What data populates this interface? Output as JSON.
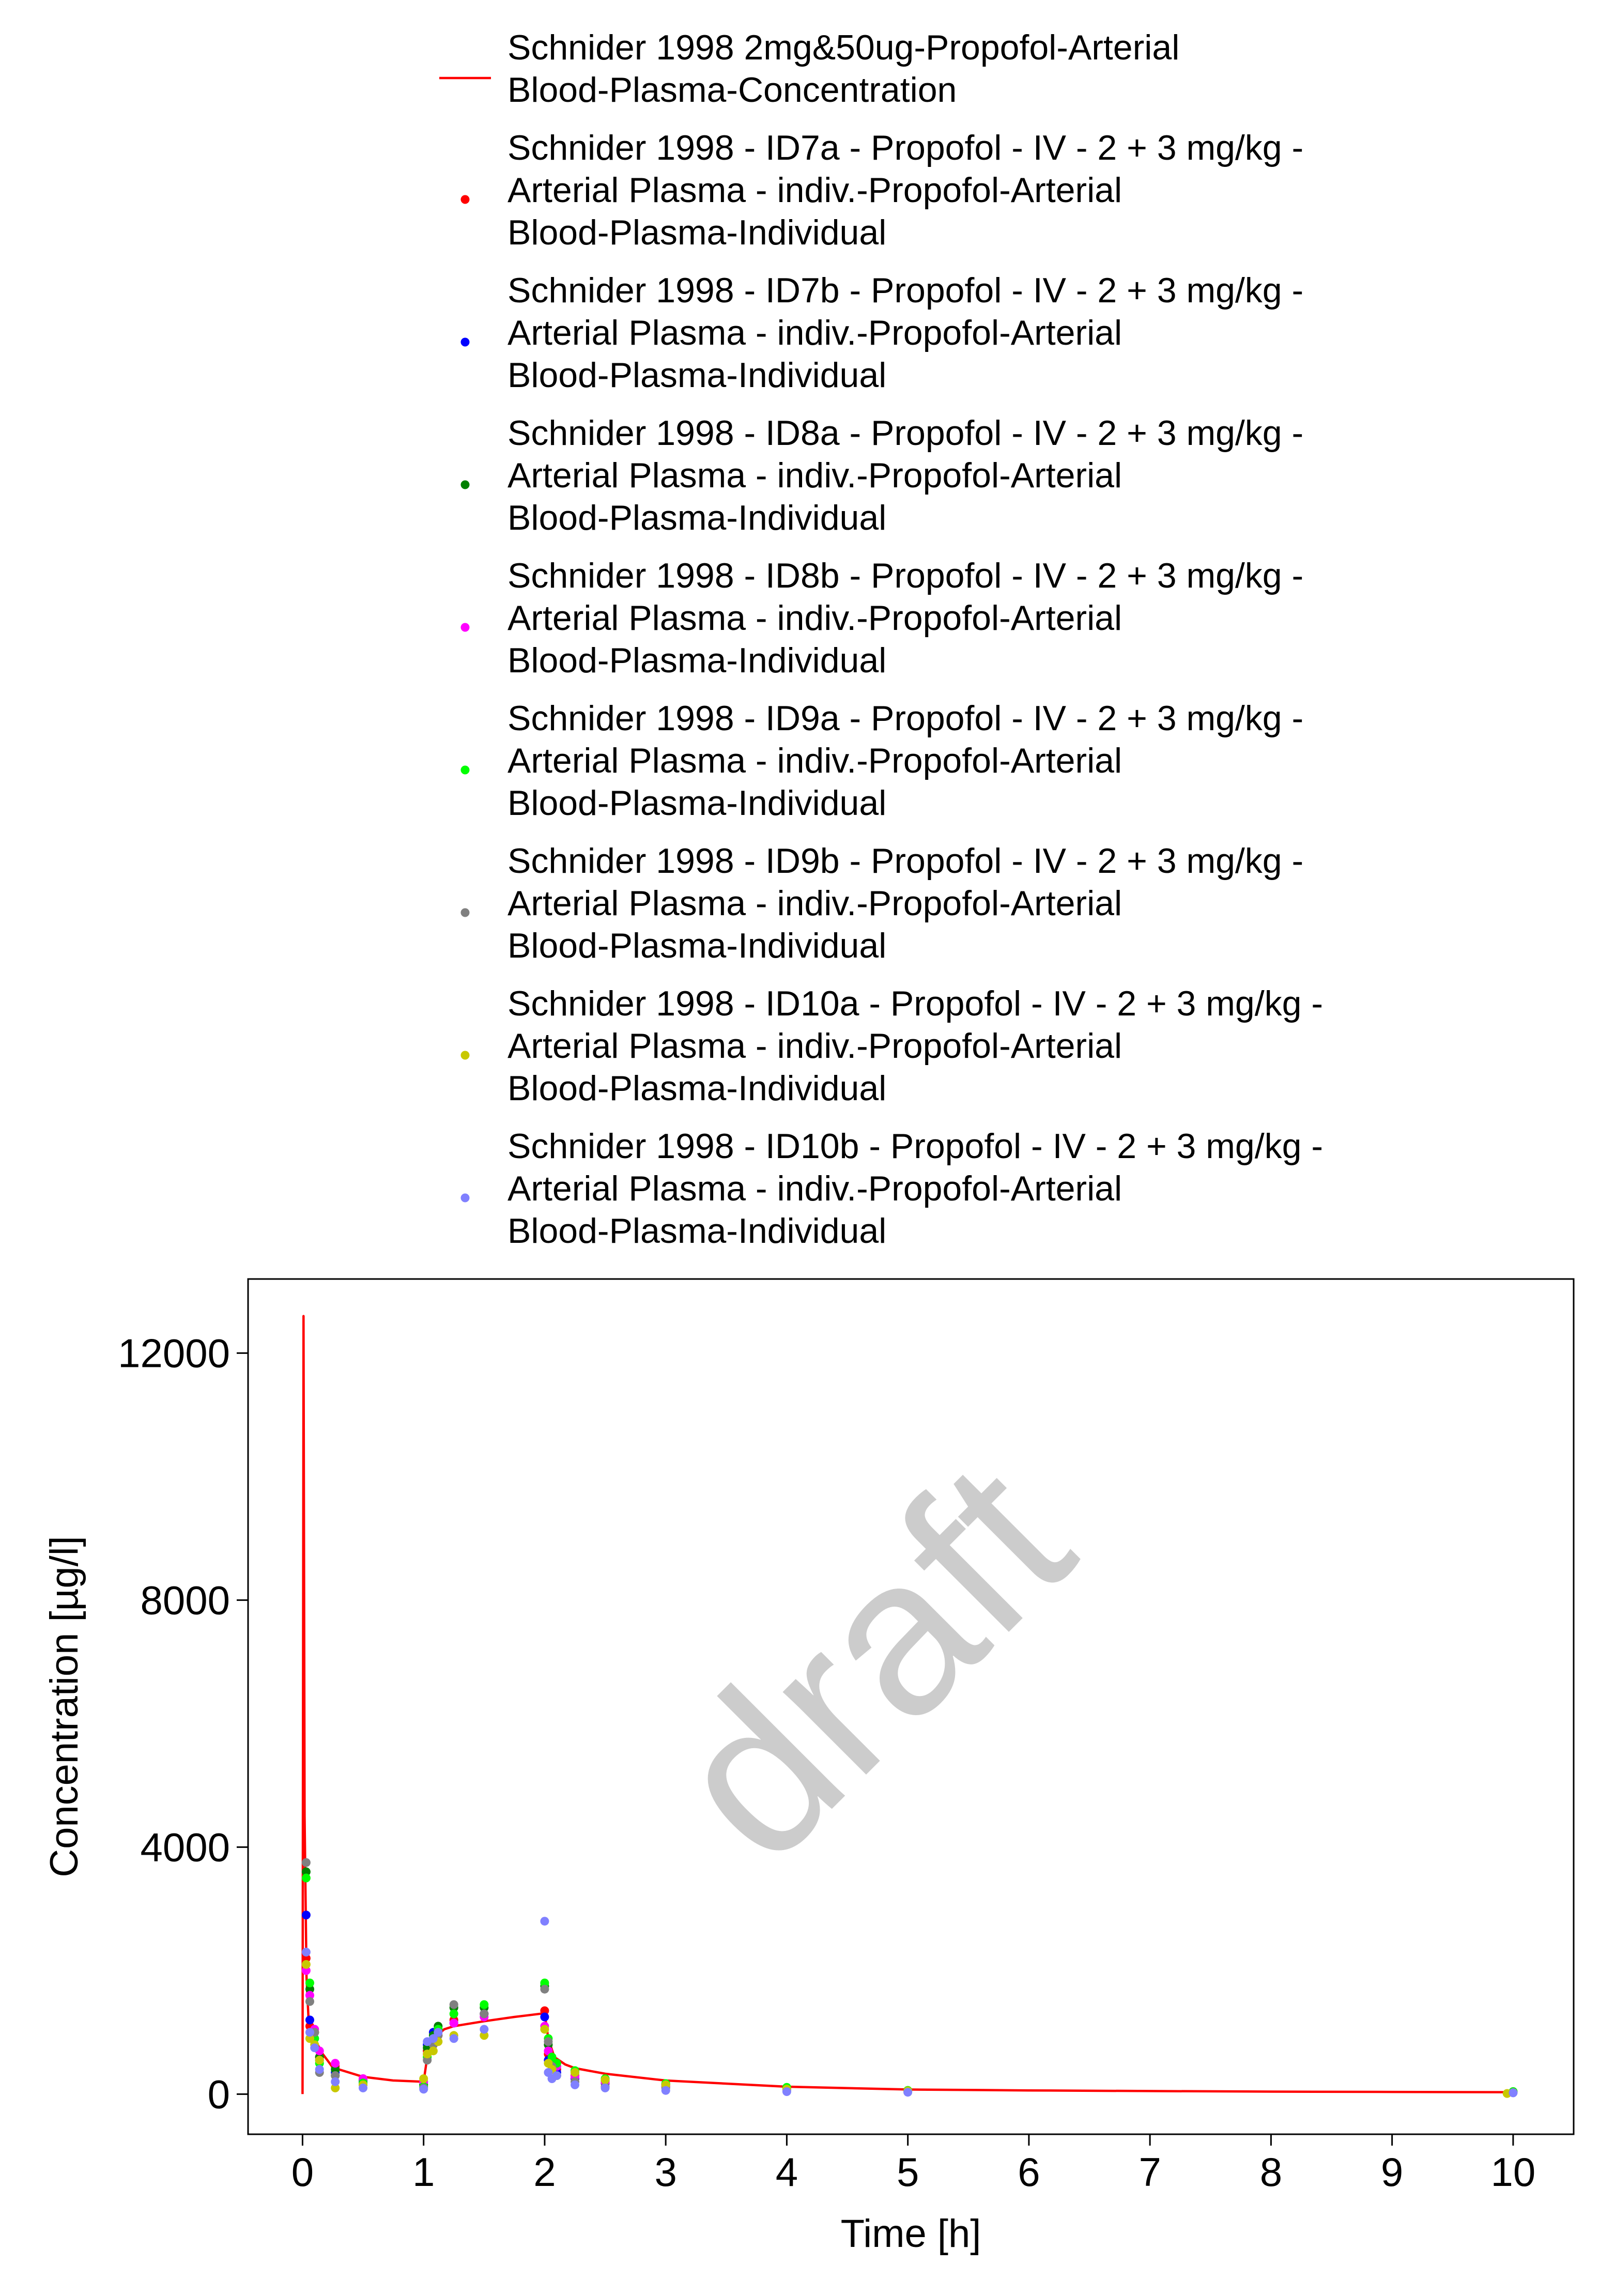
{
  "chart_data": {
    "type": "scatter",
    "title": "",
    "watermark": "draft",
    "xlabel": "Time [h]",
    "ylabel": "Concentration [µg/l]",
    "xlim": [
      -0.45,
      10.5
    ],
    "ylim": [
      -650,
      13200
    ],
    "x_ticks": [
      0,
      1,
      2,
      3,
      4,
      5,
      6,
      7,
      8,
      9,
      10
    ],
    "y_ticks": [
      0,
      4000,
      8000,
      12000
    ],
    "grid": false,
    "legend_position": "top",
    "line_series": [
      {
        "name": "Schnider 1998 2mg&50ug-Propofol-Arterial Blood-Plasma-Concentration",
        "color": "#ff0000",
        "x": [
          0.0,
          0.008,
          0.017,
          0.033,
          0.05,
          0.083,
          0.125,
          0.167,
          0.25,
          0.5,
          0.75,
          1.0,
          1.03,
          1.08,
          1.17,
          1.25,
          1.5,
          1.75,
          2.0,
          2.03,
          2.08,
          2.17,
          2.25,
          2.5,
          3.0,
          4.0,
          5.0,
          6.0,
          7.0,
          8.0,
          9.0,
          10.0
        ],
        "y": [
          0,
          12600,
          4500,
          1900,
          1200,
          950,
          800,
          650,
          430,
          280,
          220,
          200,
          600,
          900,
          1050,
          1100,
          1180,
          1250,
          1310,
          900,
          600,
          480,
          420,
          330,
          220,
          120,
          75,
          60,
          50,
          40,
          35,
          30
        ]
      }
    ],
    "series": [
      {
        "name": "Schnider 1998 - ID7a - Propofol - IV - 2 + 3 mg/kg - Arterial Plasma - indiv.-Propofol-Arterial Blood-Plasma-Individual",
        "color": "#ff0000",
        "x": [
          0.03,
          0.06,
          0.1,
          0.14,
          0.27,
          0.5,
          1.0,
          1.03,
          1.08,
          1.12,
          1.25,
          1.5,
          2.0,
          2.03,
          2.06,
          2.1,
          2.25,
          2.5,
          3.0,
          4.0,
          5.0,
          10.0
        ],
        "y": [
          2200,
          1100,
          1000,
          600,
          450,
          250,
          200,
          700,
          800,
          950,
          1200,
          1300,
          1350,
          650,
          500,
          400,
          300,
          200,
          150,
          90,
          60,
          30
        ]
      },
      {
        "name": "Schnider 1998 - ID7b - Propofol - IV - 2 + 3 mg/kg - Arterial Plasma - indiv.-Propofol-Arterial Blood-Plasma-Individual",
        "color": "#0000ff",
        "x": [
          0.03,
          0.06,
          0.1,
          0.14,
          0.27,
          0.5,
          1.0,
          1.03,
          1.08,
          1.12,
          1.25,
          1.5,
          2.0,
          2.03,
          2.06,
          2.1,
          2.25,
          2.5,
          3.0,
          4.0,
          5.0,
          10.0
        ],
        "y": [
          2900,
          1200,
          900,
          550,
          350,
          200,
          150,
          800,
          1000,
          1050,
          1150,
          1300,
          1250,
          550,
          400,
          350,
          250,
          170,
          120,
          80,
          50,
          35
        ]
      },
      {
        "name": "Schnider 1998 - ID8a - Propofol - IV - 2 + 3 mg/kg - Arterial Plasma - indiv.-Propofol-Arterial Blood-Plasma-Individual",
        "color": "#008000",
        "x": [
          0.03,
          0.06,
          0.1,
          0.14,
          0.27,
          0.5,
          1.0,
          1.03,
          1.08,
          1.12,
          1.25,
          1.5,
          2.0,
          2.03,
          2.06,
          2.1,
          2.25,
          2.5,
          3.0,
          4.0,
          5.0,
          10.0
        ],
        "y": [
          3600,
          1700,
          1000,
          600,
          400,
          230,
          150,
          750,
          950,
          1100,
          1400,
          1400,
          1750,
          800,
          550,
          450,
          350,
          230,
          160,
          100,
          55,
          40
        ]
      },
      {
        "name": "Schnider 1998 - ID8b - Propofol - IV - 2 + 3 mg/kg - Arterial Plasma - indiv.-Propofol-Arterial Blood-Plasma-Individual",
        "color": "#ff00ff",
        "x": [
          0.03,
          0.06,
          0.1,
          0.14,
          0.27,
          0.5,
          1.0,
          1.03,
          1.08,
          1.12,
          1.25,
          1.5,
          2.0,
          2.03,
          2.06,
          2.1,
          2.25,
          2.5,
          3.0,
          4.0,
          5.0,
          10.0
        ],
        "y": [
          2000,
          1600,
          1050,
          700,
          500,
          250,
          200,
          650,
          850,
          1000,
          1150,
          1250,
          1100,
          700,
          550,
          450,
          280,
          190,
          130,
          85,
          50,
          30
        ]
      },
      {
        "name": "Schnider 1998 - ID9a - Propofol - IV - 2 + 3 mg/kg - Arterial Plasma - indiv.-Propofol-Arterial Blood-Plasma-Individual",
        "color": "#00ff00",
        "x": [
          0.03,
          0.06,
          0.1,
          0.14,
          0.27,
          0.5,
          1.0,
          1.03,
          1.08,
          1.12,
          1.25,
          1.5,
          2.0,
          2.03,
          2.06,
          2.1,
          2.25,
          2.5,
          3.0,
          4.0,
          5.0,
          10.0
        ],
        "y": [
          3500,
          1800,
          900,
          500,
          300,
          180,
          120,
          600,
          900,
          1050,
          1300,
          1450,
          1800,
          900,
          600,
          500,
          380,
          250,
          170,
          110,
          60,
          40
        ]
      },
      {
        "name": "Schnider 1998 - ID9b - Propofol - IV - 2 + 3 mg/kg - Arterial Plasma - indiv.-Propofol-Arterial Blood-Plasma-Individual",
        "color": "#808080",
        "x": [
          0.03,
          0.06,
          0.1,
          0.14,
          0.27,
          0.5,
          1.0,
          1.03,
          1.08,
          1.12,
          1.25,
          1.5,
          2.0,
          2.03,
          2.06,
          2.1,
          2.25,
          2.5,
          3.0,
          4.0,
          5.0,
          10.0
        ],
        "y": [
          3750,
          1500,
          1000,
          350,
          300,
          150,
          100,
          550,
          800,
          950,
          1450,
          1300,
          1700,
          850,
          450,
          300,
          200,
          120,
          100,
          70,
          40,
          25
        ]
      },
      {
        "name": "Schnider 1998 - ID10a - Propofol - IV - 2 + 3 mg/kg - Arterial Plasma - indiv.-Propofol-Arterial Blood-Plasma-Individual",
        "color": "#c8c800",
        "x": [
          0.03,
          0.06,
          0.1,
          0.14,
          0.27,
          0.5,
          1.0,
          1.03,
          1.08,
          1.12,
          1.25,
          1.5,
          2.0,
          2.03,
          2.06,
          2.1,
          2.25,
          2.5,
          3.0,
          4.0,
          5.0,
          9.95
        ],
        "y": [
          2100,
          900,
          800,
          550,
          100,
          150,
          250,
          650,
          700,
          850,
          950,
          950,
          1050,
          500,
          400,
          300,
          350,
          230,
          150,
          80,
          50,
          10
        ]
      },
      {
        "name": "Schnider 1998 - ID10b - Propofol - IV - 2 + 3 mg/kg - Arterial Plasma - indiv.-Propofol-Arterial Blood-Plasma-Individual",
        "color": "#8080ff",
        "x": [
          0.03,
          0.06,
          0.1,
          0.14,
          0.27,
          0.5,
          1.0,
          1.03,
          1.08,
          1.12,
          1.25,
          1.5,
          2.0,
          2.03,
          2.06,
          2.1,
          2.25,
          2.5,
          3.0,
          4.0,
          5.0,
          10.0
        ],
        "y": [
          2300,
          1000,
          750,
          400,
          200,
          100,
          80,
          850,
          900,
          1000,
          900,
          1050,
          2800,
          350,
          250,
          300,
          150,
          100,
          60,
          40,
          30,
          20
        ]
      }
    ]
  }
}
